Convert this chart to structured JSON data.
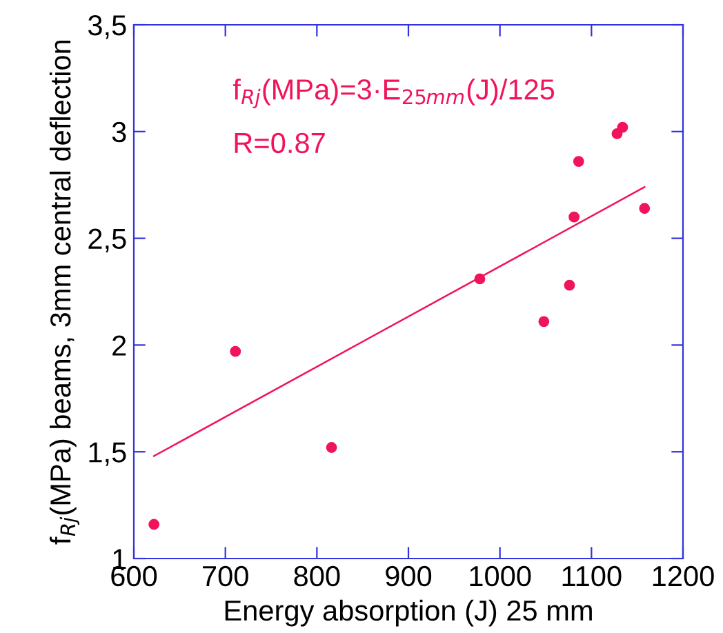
{
  "chart_data": {
    "type": "scatter",
    "xlabel": "Energy absorption (J) 25 mm",
    "ylabel": "f$_{Rj}$(MPa) beams, 3mm central deflection",
    "annotations": [
      "f$_{Rj}$(MPa)=3·E$_{25mm}$(J)/125",
      "R=0.87"
    ],
    "series": [
      {
        "type": "scatter",
        "color": "#f0145a",
        "marker": "circle",
        "x": [
          622,
          711,
          816,
          978,
          1048,
          1076,
          1081,
          1086,
          1128,
          1134,
          1158
        ],
        "values": [
          1.16,
          1.97,
          1.52,
          2.31,
          2.11,
          2.28,
          2.6,
          2.86,
          2.99,
          3.02,
          2.64
        ]
      },
      {
        "type": "line",
        "color": "#f0145a",
        "x": [
          622,
          1158
        ],
        "values": [
          1.48,
          2.74
        ]
      }
    ],
    "xlim": [
      600,
      1200
    ],
    "xticks": [
      600,
      700,
      800,
      900,
      1000,
      1100,
      1200
    ],
    "ylim": [
      1,
      3.5
    ],
    "yticks": [
      1,
      {
        "value": 1.5,
        "label": "1,5"
      },
      2,
      {
        "value": 2.5,
        "label": "2,5"
      },
      3,
      {
        "value": 3.5,
        "label": "3,5"
      }
    ],
    "grid": false,
    "legend": false
  }
}
